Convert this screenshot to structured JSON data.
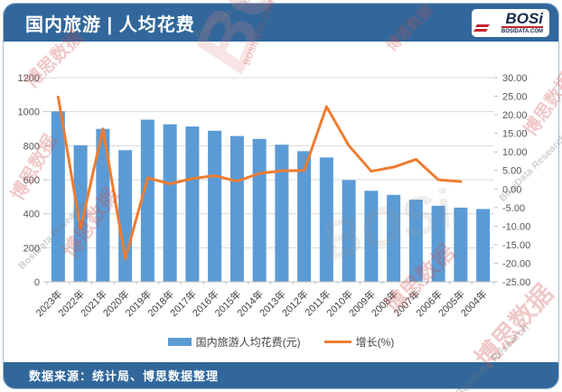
{
  "header": {
    "title": "国内旅游 | 人均花费",
    "logo": {
      "text": "BOSi",
      "subtext": "BOSIDATA.COM"
    }
  },
  "footer": {
    "source": "数据来源：统计局、博思数据整理"
  },
  "legend": {
    "bar_label": "国内旅游人均花费(元)",
    "line_label": "增长(%)"
  },
  "colors": {
    "header_bg": "#31679b",
    "bar": "#5B9BD5",
    "line": "#ED7D31",
    "grid": "#d9d9d9",
    "axis_line": "#bfbfbf"
  },
  "watermarks": {
    "items": [
      "博思数据",
      "BosiData.Com",
      "BOSi",
      "BOSIDATA.COM",
      "博思数据",
      "博思数据",
      "BosiData Research",
      "博思数据",
      "博思数据",
      "BosiData Research",
      "BOSi",
      "博思数据",
      "博思数据",
      "BosiData Research"
    ]
  },
  "chart_data": {
    "type": "bar",
    "subtype": "bar-line-combo",
    "title": "国内旅游 | 人均花费",
    "categories": [
      "2023年",
      "2022年",
      "2021年",
      "2020年",
      "2019年",
      "2018年",
      "2017年",
      "2016年",
      "2015年",
      "2014年",
      "2013年",
      "2012年",
      "2011年",
      "2010年",
      "2009年",
      "2008年",
      "2007年",
      "2006年",
      "2005年",
      "2004年"
    ],
    "series": [
      {
        "name": "国内旅游人均花费(元)",
        "type": "bar",
        "axis": "left",
        "color": "#5B9BD5",
        "values": [
          1002,
          803,
          899,
          774,
          953,
          926,
          913,
          888,
          857,
          840,
          806,
          768,
          731,
          598,
          535,
          511,
          483,
          447,
          436,
          428
        ]
      },
      {
        "name": "增长(%)",
        "type": "line",
        "axis": "right",
        "color": "#ED7D31",
        "values": [
          24.8,
          -10.7,
          16.2,
          -18.8,
          3.0,
          1.4,
          2.8,
          3.6,
          2.1,
          4.2,
          4.9,
          5.0,
          22.2,
          11.7,
          4.8,
          5.9,
          8.0,
          2.5,
          2.0,
          null
        ]
      }
    ],
    "left_axis": {
      "min": 0,
      "max": 1200,
      "step": 200,
      "decimals": 0
    },
    "right_axis": {
      "min": -25,
      "max": 30,
      "step": 5,
      "decimals": 2
    },
    "grid": true,
    "legend_position": "bottom",
    "xlabel": "",
    "ylabel": ""
  }
}
